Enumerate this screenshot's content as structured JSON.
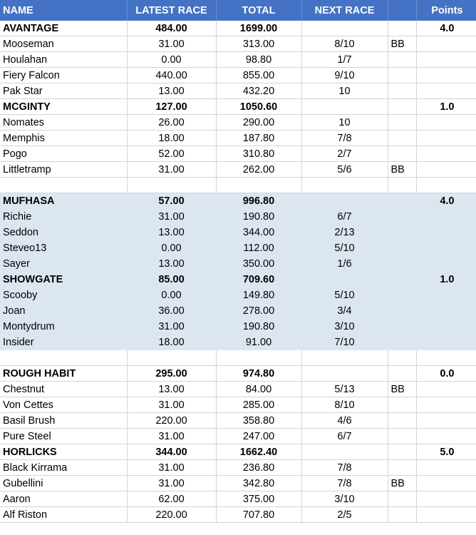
{
  "headers": {
    "name": "NAME",
    "latest": "LATEST RACE",
    "total": "TOTAL",
    "next": "NEXT RACE",
    "bb": "",
    "points": "Points"
  },
  "rows": [
    {
      "kind": "team",
      "name": "AVANTAGE",
      "latest": "484.00",
      "total": "1699.00",
      "next": "",
      "bb": "",
      "points": "4.0",
      "shade": false
    },
    {
      "kind": "horse",
      "name": "Mooseman",
      "latest": "31.00",
      "total": "313.00",
      "next": "8/10",
      "bb": "BB",
      "points": "",
      "shade": false
    },
    {
      "kind": "horse",
      "name": "Houlahan",
      "latest": "0.00",
      "total": "98.80",
      "next": "1/7",
      "bb": "",
      "points": "",
      "shade": false
    },
    {
      "kind": "horse",
      "name": "Fiery Falcon",
      "latest": "440.00",
      "total": "855.00",
      "next": "9/10",
      "bb": "",
      "points": "",
      "shade": false
    },
    {
      "kind": "horse",
      "name": "Pak Star",
      "latest": "13.00",
      "total": "432.20",
      "next": "10",
      "bb": "",
      "points": "",
      "shade": false
    },
    {
      "kind": "team",
      "name": "MCGINTY",
      "latest": "127.00",
      "total": "1050.60",
      "next": "",
      "bb": "",
      "points": "1.0",
      "shade": false
    },
    {
      "kind": "horse",
      "name": "Nomates",
      "latest": "26.00",
      "total": "290.00",
      "next": "10",
      "bb": "",
      "points": "",
      "shade": false
    },
    {
      "kind": "horse",
      "name": "Memphis",
      "latest": "18.00",
      "total": "187.80",
      "next": "7/8",
      "bb": "",
      "points": "",
      "shade": false
    },
    {
      "kind": "horse",
      "name": "Pogo",
      "latest": "52.00",
      "total": "310.80",
      "next": "2/7",
      "bb": "",
      "points": "",
      "shade": false
    },
    {
      "kind": "horse",
      "name": "Littletramp",
      "latest": "31.00",
      "total": "262.00",
      "next": "5/6",
      "bb": "BB",
      "points": "",
      "shade": false
    },
    {
      "kind": "blank",
      "name": "",
      "latest": "",
      "total": "",
      "next": "",
      "bb": "",
      "points": "",
      "shade": false
    },
    {
      "kind": "team",
      "name": "MUFHASA",
      "latest": "57.00",
      "total": "996.80",
      "next": "",
      "bb": "",
      "points": "4.0",
      "shade": true
    },
    {
      "kind": "horse",
      "name": "Richie",
      "latest": "31.00",
      "total": "190.80",
      "next": "6/7",
      "bb": "",
      "points": "",
      "shade": true
    },
    {
      "kind": "horse",
      "name": "Seddon",
      "latest": "13.00",
      "total": "344.00",
      "next": "2/13",
      "bb": "",
      "points": "",
      "shade": true
    },
    {
      "kind": "horse",
      "name": "Steveo13",
      "latest": "0.00",
      "total": "112.00",
      "next": "5/10",
      "bb": "",
      "points": "",
      "shade": true
    },
    {
      "kind": "horse",
      "name": "Sayer",
      "latest": "13.00",
      "total": "350.00",
      "next": "1/6",
      "bb": "",
      "points": "",
      "shade": true
    },
    {
      "kind": "team",
      "name": "SHOWGATE",
      "latest": "85.00",
      "total": "709.60",
      "next": "",
      "bb": "",
      "points": "1.0",
      "shade": true
    },
    {
      "kind": "horse",
      "name": "Scooby",
      "latest": "0.00",
      "total": "149.80",
      "next": "5/10",
      "bb": "",
      "points": "",
      "shade": true
    },
    {
      "kind": "horse",
      "name": "Joan",
      "latest": "36.00",
      "total": "278.00",
      "next": "3/4",
      "bb": "",
      "points": "",
      "shade": true
    },
    {
      "kind": "horse",
      "name": "Montydrum",
      "latest": "31.00",
      "total": "190.80",
      "next": "3/10",
      "bb": "",
      "points": "",
      "shade": true
    },
    {
      "kind": "horse",
      "name": "Insider",
      "latest": "18.00",
      "total": "91.00",
      "next": "7/10",
      "bb": "",
      "points": "",
      "shade": true
    },
    {
      "kind": "blank",
      "name": "",
      "latest": "",
      "total": "",
      "next": "",
      "bb": "",
      "points": "",
      "shade": false
    },
    {
      "kind": "team",
      "name": "ROUGH HABIT",
      "latest": "295.00",
      "total": "974.80",
      "next": "",
      "bb": "",
      "points": "0.0",
      "shade": false
    },
    {
      "kind": "horse",
      "name": "Chestnut",
      "latest": "13.00",
      "total": "84.00",
      "next": "5/13",
      "bb": "BB",
      "points": "",
      "shade": false
    },
    {
      "kind": "horse",
      "name": "Von Cettes",
      "latest": "31.00",
      "total": "285.00",
      "next": "8/10",
      "bb": "",
      "points": "",
      "shade": false
    },
    {
      "kind": "horse",
      "name": "Basil Brush",
      "latest": "220.00",
      "total": "358.80",
      "next": "4/6",
      "bb": "",
      "points": "",
      "shade": false
    },
    {
      "kind": "horse",
      "name": "Pure Steel",
      "latest": "31.00",
      "total": "247.00",
      "next": "6/7",
      "bb": "",
      "points": "",
      "shade": false
    },
    {
      "kind": "team",
      "name": "HORLICKS",
      "latest": "344.00",
      "total": "1662.40",
      "next": "",
      "bb": "",
      "points": "5.0",
      "shade": false
    },
    {
      "kind": "horse",
      "name": "Black Kirrama",
      "latest": "31.00",
      "total": "236.80",
      "next": "7/8",
      "bb": "",
      "points": "",
      "shade": false
    },
    {
      "kind": "horse",
      "name": "Gubellini",
      "latest": "31.00",
      "total": "342.80",
      "next": "7/8",
      "bb": "BB",
      "points": "",
      "shade": false
    },
    {
      "kind": "horse",
      "name": "Aaron",
      "latest": "62.00",
      "total": "375.00",
      "next": "3/10",
      "bb": "",
      "points": "",
      "shade": false
    },
    {
      "kind": "horse",
      "name": "Alf Riston",
      "latest": "220.00",
      "total": "707.80",
      "next": "2/5",
      "bb": "",
      "points": "",
      "shade": false
    }
  ],
  "colors": {
    "header_bg": "#4472c4",
    "header_text": "#ffffff",
    "shade_bg": "#dce6f1",
    "grid": "#d4d4d4"
  }
}
